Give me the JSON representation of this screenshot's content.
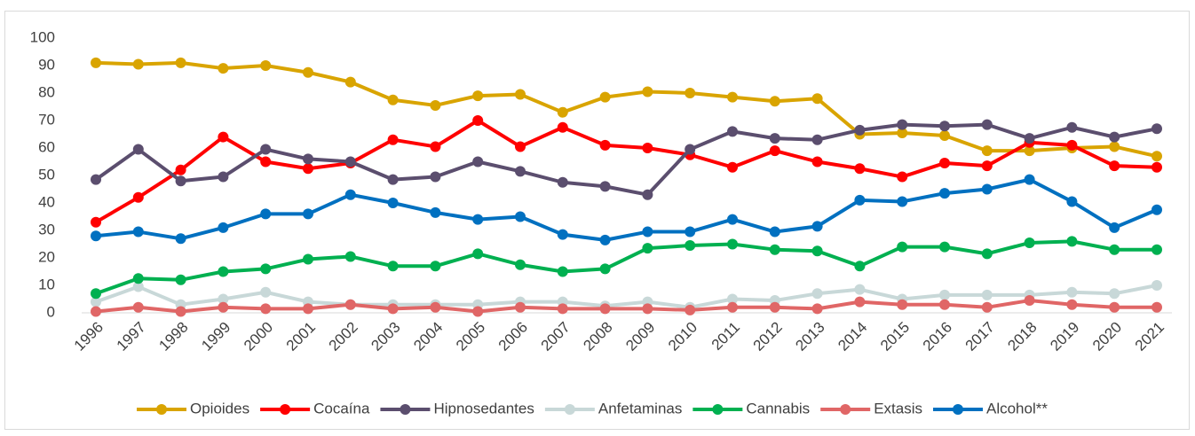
{
  "chart_data": {
    "type": "line",
    "categories": [
      "1996",
      "1997",
      "1998",
      "1999",
      "2000",
      "2001",
      "2002",
      "2003",
      "2004",
      "2005",
      "2006",
      "2007",
      "2008",
      "2009",
      "2010",
      "2011",
      "2012",
      "2013",
      "2014",
      "2015",
      "2016",
      "2017",
      "2018",
      "2019",
      "2020",
      "2021"
    ],
    "series": [
      {
        "name": "Opioides",
        "color": "#d9a400",
        "values": [
          91,
          90.5,
          91,
          89,
          90,
          87.5,
          84,
          77.5,
          75.5,
          79,
          79.5,
          73,
          78.5,
          80.5,
          80,
          78.5,
          77,
          78,
          65,
          65.5,
          64.5,
          59,
          59,
          60,
          60.5,
          57
        ]
      },
      {
        "name": "Cocaína",
        "color": "#ff0000",
        "values": [
          33,
          42,
          52,
          64,
          55,
          52.5,
          54.5,
          63,
          60.5,
          70,
          60.5,
          67.5,
          61,
          60,
          57.5,
          53,
          59,
          55,
          52.5,
          49.5,
          54.5,
          53.5,
          62,
          61,
          53.5,
          53
        ]
      },
      {
        "name": "Hipnosedantes",
        "color": "#5b4e6e",
        "values": [
          48.5,
          59.5,
          48,
          49.5,
          59.5,
          56,
          55,
          48.5,
          49.5,
          55,
          51.5,
          47.5,
          46,
          43,
          59.5,
          66,
          63.5,
          63,
          66.5,
          68.5,
          68,
          68.5,
          63.5,
          67.5,
          64,
          67
        ]
      },
      {
        "name": "Anfetaminas",
        "color": "#c8d8d8",
        "values": [
          4,
          9.5,
          3,
          5,
          7.5,
          4,
          3,
          3,
          3,
          3,
          4,
          4,
          2.5,
          4,
          2,
          5,
          4.5,
          7,
          8.5,
          5,
          6.5,
          6.5,
          6.5,
          7.5,
          7,
          10
        ]
      },
      {
        "name": "Cannabis",
        "color": "#00b050",
        "values": [
          7,
          12.5,
          12,
          15,
          16,
          19.5,
          20.5,
          17,
          17,
          21.5,
          17.5,
          15,
          16,
          23.5,
          24.5,
          25,
          23,
          22.5,
          17,
          24,
          24,
          21.5,
          25.5,
          26,
          23,
          23
        ]
      },
      {
        "name": "Extasis",
        "color": "#e06666",
        "values": [
          0.5,
          2,
          0.5,
          2,
          1.5,
          1.5,
          3,
          1.5,
          2,
          0.5,
          2,
          1.5,
          1.5,
          1.5,
          1,
          2,
          2,
          1.5,
          4,
          3,
          3,
          2,
          4.5,
          3,
          2,
          2
        ]
      },
      {
        "name": "Alcohol**",
        "color": "#0070c0",
        "values": [
          28,
          29.5,
          27,
          31,
          36,
          36,
          43,
          40,
          36.5,
          34,
          35,
          28.5,
          26.5,
          29.5,
          29.5,
          34,
          29.5,
          31.5,
          41,
          40.5,
          43.5,
          45,
          48.5,
          40.5,
          31,
          37.5
        ]
      }
    ],
    "ylim": [
      0,
      100
    ],
    "yticks": [
      0,
      10,
      20,
      30,
      40,
      50,
      60,
      70,
      80,
      90,
      100
    ],
    "legend": "bottom"
  }
}
